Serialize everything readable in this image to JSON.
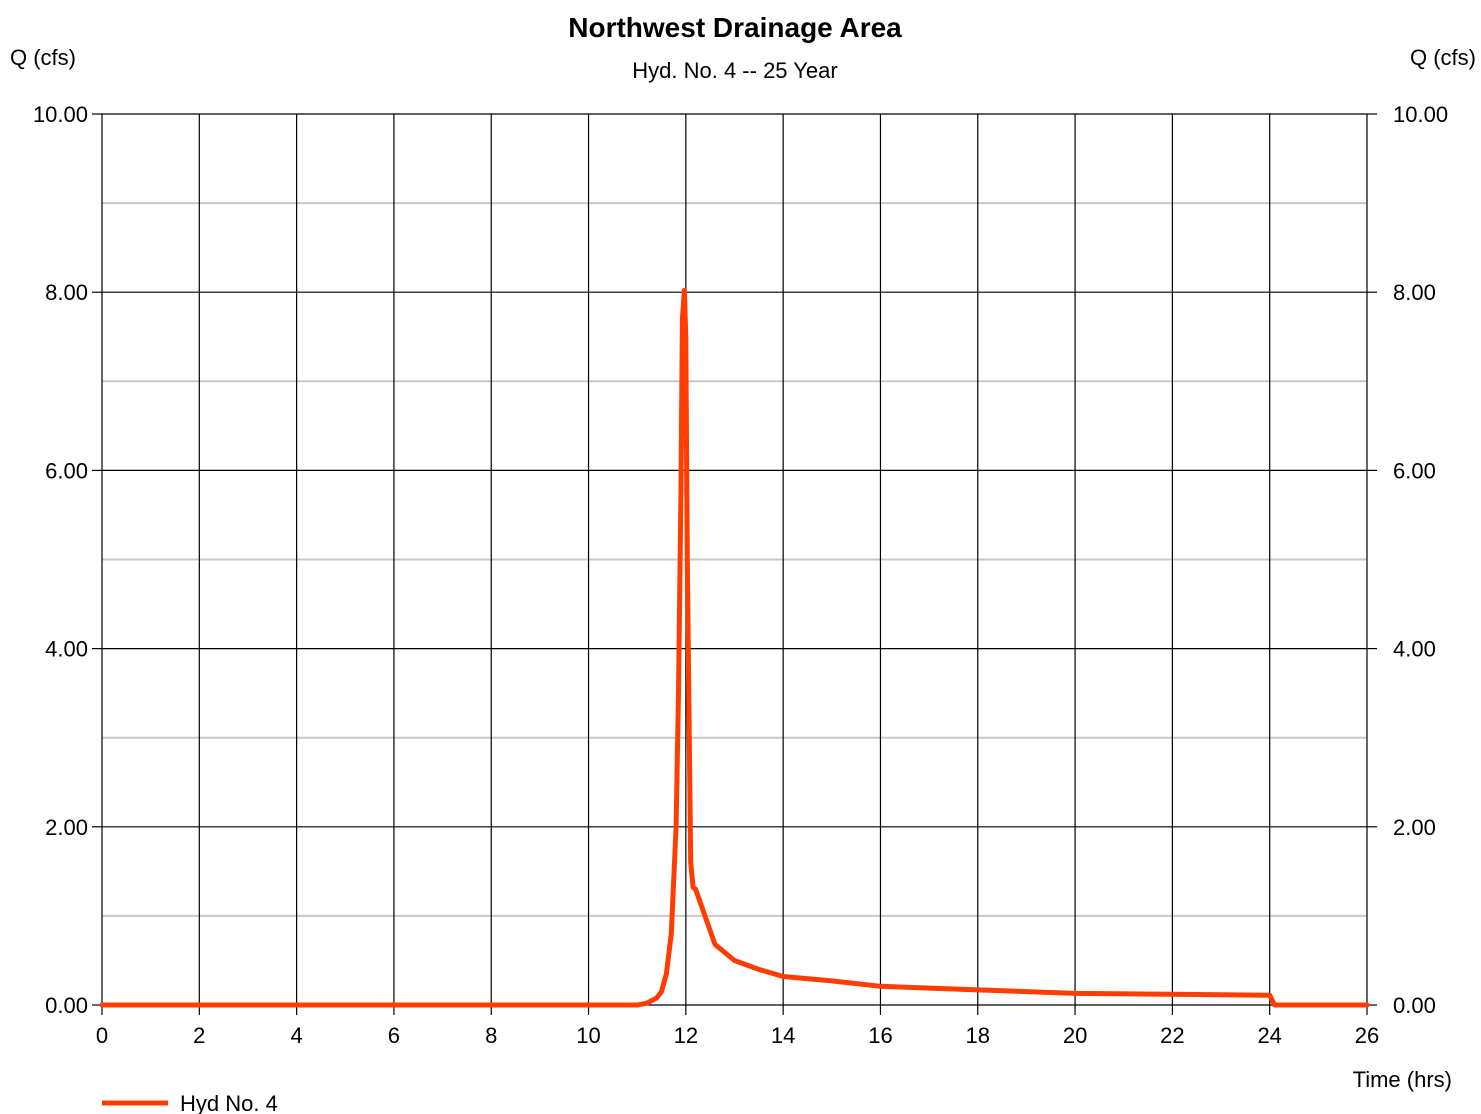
{
  "chart_data": {
    "type": "line",
    "title": "Northwest Drainage Area",
    "subtitle": "Hyd. No. 4 -- 25 Year",
    "ylabel_left": "Q (cfs)",
    "ylabel_right": "Q (cfs)",
    "xlabel": "Time (hrs)",
    "xlim": [
      0,
      26
    ],
    "ylim": [
      0,
      10
    ],
    "x_ticks": [
      0,
      2,
      4,
      6,
      8,
      10,
      12,
      14,
      16,
      18,
      20,
      22,
      24,
      26
    ],
    "x_tick_labels": [
      "0",
      "2",
      "4",
      "6",
      "8",
      "10",
      "12",
      "14",
      "16",
      "18",
      "20",
      "22",
      "24",
      "26"
    ],
    "y_ticks": [
      0,
      2,
      4,
      6,
      8,
      10
    ],
    "y_tick_labels": [
      "0.00",
      "2.00",
      "4.00",
      "6.00",
      "8.00",
      "10.00"
    ],
    "y_minor_ticks": [
      1,
      3,
      5,
      7,
      9
    ],
    "grid": true,
    "legend_position": "bottom-left",
    "series": [
      {
        "name": "Hyd No. 4",
        "color": "#ff3d00",
        "x": [
          0,
          11.0,
          11.2,
          11.4,
          11.5,
          11.6,
          11.7,
          11.8,
          11.85,
          11.9,
          11.93,
          11.97,
          12.0,
          12.03,
          12.07,
          12.1,
          12.15,
          12.2,
          12.6,
          13.0,
          13.5,
          14.0,
          15.0,
          16.0,
          18.0,
          20.0,
          22.0,
          24.0,
          24.1,
          26.0
        ],
        "y": [
          0,
          0,
          0.02,
          0.08,
          0.15,
          0.35,
          0.8,
          2.0,
          3.5,
          5.8,
          7.7,
          8.02,
          7.5,
          5.0,
          3.0,
          1.6,
          1.32,
          1.3,
          0.68,
          0.5,
          0.4,
          0.32,
          0.27,
          0.21,
          0.17,
          0.13,
          0.12,
          0.11,
          0.0,
          0.0
        ]
      }
    ]
  }
}
